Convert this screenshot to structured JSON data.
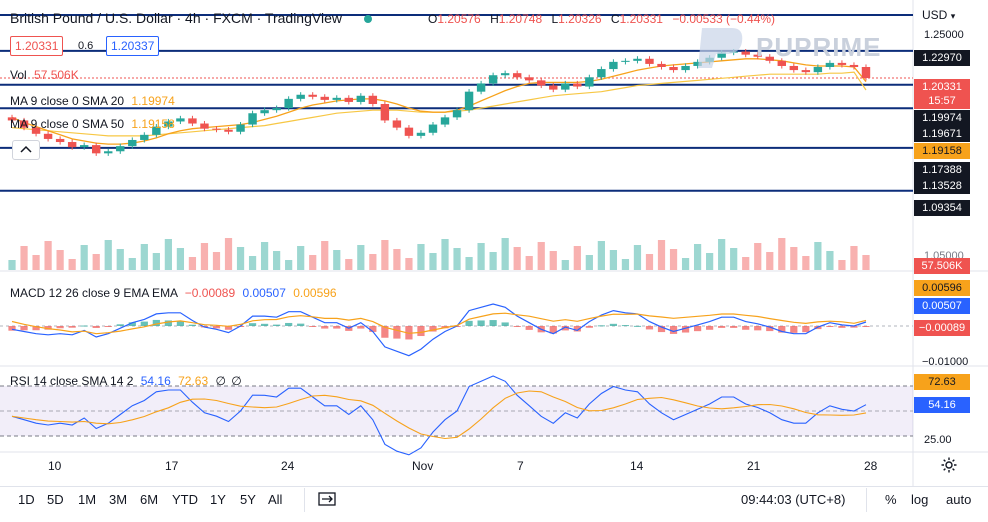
{
  "header": {
    "title": "British Pound / U.S. Dollar · 4h · FXCM · TradingView",
    "ohlc": {
      "o_label": "O",
      "o_value": "1.20576",
      "h_label": "H",
      "h_value": "1.20748",
      "l_label": "L",
      "l_value": "1.20326",
      "c_label": "C",
      "c_value": "1.20331",
      "change": "−0.00533 (−0.44%)"
    },
    "bid": "1.20331",
    "spread": "0.6",
    "ask": "1.20337"
  },
  "watermark": "PUPRIME",
  "currency": "USD",
  "indicators": {
    "vol": {
      "label": "Vol",
      "value": "57.506K"
    },
    "ma20": {
      "label": "MA 9 close 0 SMA 20",
      "value": "1.19974"
    },
    "ma50": {
      "label": "MA 9 close 0 SMA 50",
      "value": "1.19158"
    },
    "macd": {
      "label": "MACD 12 26 close 9 EMA EMA",
      "hist": "−0.00089",
      "macd": "0.00507",
      "signal": "0.00596"
    },
    "rsi": {
      "label": "RSI 14 close SMA 14 2",
      "rsi": "54.16",
      "sma": "72.63",
      "a": "∅",
      "b": "∅"
    }
  },
  "price_axis": {
    "top_tick": "1.25000",
    "tags": [
      {
        "label": "1.22970",
        "color": "#131722"
      },
      {
        "label": "1.20331",
        "color": "#ef5350"
      },
      {
        "label": "15:57",
        "color": "#ef5350"
      },
      {
        "label": "1.19974",
        "color": "#131722"
      },
      {
        "label": "1.19671",
        "color": "#131722"
      },
      {
        "label": "1.19158",
        "color": "#f7a21b"
      },
      {
        "label": "1.17388",
        "color": "#131722"
      },
      {
        "label": "1.13528",
        "color": "#131722"
      },
      {
        "label": "1.09354",
        "color": "#131722"
      }
    ],
    "vol_tag": "57.506K",
    "vol_hidden_tick": "1.05000",
    "macd_tags": [
      "0.00596",
      "0.00507",
      "−0.00089"
    ],
    "macd_tick": "−0.01000",
    "rsi_tags": [
      "72.63",
      "54.16"
    ],
    "rsi_tick": "25.00"
  },
  "time_axis": [
    "10",
    "17",
    "24",
    "Nov",
    "7",
    "14",
    "21",
    "28"
  ],
  "timeframes": [
    "1D",
    "5D",
    "1M",
    "3M",
    "6M",
    "YTD",
    "1Y",
    "5Y",
    "All"
  ],
  "footer": {
    "clock": "09:44:03 (UTC+8)",
    "percent": "%",
    "log": "log",
    "auto": "auto"
  },
  "colors": {
    "up": "#26a69a",
    "down": "#ef5350",
    "ma20": "#f7a21b",
    "ma50": "#f7c744",
    "hline": "#0c2d7a",
    "macd_line": "#2962ff",
    "signal_line": "#f7a21b",
    "rsi_band": "#7e57c2"
  },
  "chart_data": {
    "type": "candlestick",
    "symbol": "GBPUSD",
    "interval": "4h",
    "price_levels": [
      1.2297,
      1.20331,
      1.19671,
      1.17388,
      1.13528,
      1.09354
    ],
    "ylim": [
      1.07,
      1.25
    ],
    "closes": [
      1.162,
      1.155,
      1.149,
      1.144,
      1.141,
      1.136,
      1.138,
      1.13,
      1.132,
      1.137,
      1.143,
      1.148,
      1.156,
      1.161,
      1.164,
      1.159,
      1.154,
      1.153,
      1.151,
      1.158,
      1.169,
      1.172,
      1.174,
      1.183,
      1.187,
      1.185,
      1.182,
      1.184,
      1.18,
      1.186,
      1.178,
      1.162,
      1.155,
      1.147,
      1.15,
      1.158,
      1.165,
      1.172,
      1.19,
      1.198,
      1.206,
      1.208,
      1.204,
      1.201,
      1.196,
      1.192,
      1.198,
      1.195,
      1.204,
      1.212,
      1.219,
      1.22,
      1.222,
      1.217,
      1.214,
      1.211,
      1.215,
      1.219,
      1.223,
      1.228,
      1.229,
      1.226,
      1.224,
      1.22,
      1.215,
      1.211,
      1.209,
      1.214,
      1.218,
      1.216,
      1.214,
      1.2033
    ],
    "ma20": [
      1.165,
      1.16,
      1.156,
      1.152,
      1.148,
      1.144,
      1.142,
      1.14,
      1.139,
      1.139,
      1.14,
      1.142,
      1.145,
      1.149,
      1.152,
      1.154,
      1.155,
      1.156,
      1.157,
      1.158,
      1.16,
      1.163,
      1.166,
      1.17,
      1.174,
      1.177,
      1.179,
      1.181,
      1.182,
      1.183,
      1.183,
      1.181,
      1.178,
      1.174,
      1.171,
      1.17,
      1.17,
      1.172,
      1.176,
      1.181,
      1.186,
      1.191,
      1.195,
      1.198,
      1.199,
      1.199,
      1.199,
      1.199,
      1.2,
      1.202,
      1.205,
      1.208,
      1.211,
      1.213,
      1.215,
      1.216,
      1.217,
      1.218,
      1.219,
      1.22,
      1.221,
      1.222,
      1.222,
      1.221,
      1.22,
      1.218,
      1.216,
      1.215,
      1.215,
      1.215,
      1.214,
      1.1997
    ],
    "ma50": [
      1.155,
      1.154,
      1.153,
      1.152,
      1.151,
      1.15,
      1.149,
      1.148,
      1.147,
      1.147,
      1.147,
      1.147,
      1.148,
      1.149,
      1.15,
      1.151,
      1.152,
      1.153,
      1.154,
      1.155,
      1.156,
      1.157,
      1.159,
      1.161,
      1.163,
      1.165,
      1.167,
      1.169,
      1.17,
      1.171,
      1.172,
      1.172,
      1.172,
      1.171,
      1.17,
      1.17,
      1.17,
      1.171,
      1.172,
      1.174,
      1.176,
      1.178,
      1.18,
      1.182,
      1.184,
      1.186,
      1.187,
      1.188,
      1.189,
      1.19,
      1.192,
      1.194,
      1.196,
      1.197,
      1.198,
      1.199,
      1.2,
      1.201,
      1.202,
      1.203,
      1.204,
      1.205,
      1.206,
      1.207,
      1.207,
      1.207,
      1.207,
      1.207,
      1.208,
      1.208,
      1.209,
      1.1916
    ]
  }
}
